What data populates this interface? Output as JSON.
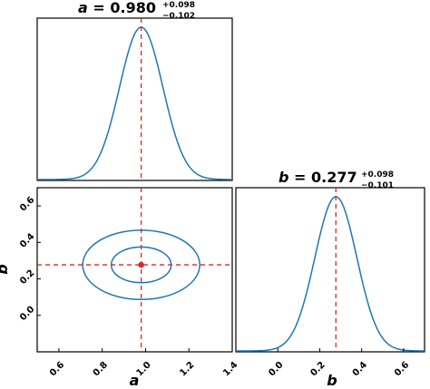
{
  "figure": {
    "top_left": {
      "title": {
        "param": "a",
        "center": "0.980",
        "plus": "+0.098",
        "minus": "−0.102"
      }
    },
    "bottom_right": {
      "title": {
        "param": "b",
        "center": "0.277",
        "plus": "+0.098",
        "minus": "−0.101"
      }
    }
  },
  "chart_data": [
    {
      "type": "line",
      "panel": "marginal-a",
      "title": "a = 0.980 +0.098 −0.102",
      "xlim": [
        0.5,
        1.4
      ],
      "ylim": [
        0,
        1.0
      ],
      "x_variable": "a",
      "peak_x": 0.98,
      "sigma": 0.1,
      "series": [
        {
          "values_shape": "gaussian",
          "color": "#1f77b4"
        }
      ],
      "marker": {
        "x": 0.98,
        "color": "#d62728",
        "style": "dashed"
      },
      "ticks_visible": false
    },
    {
      "type": "line",
      "panel": "joint-a-b",
      "xlim": [
        0.5,
        1.4
      ],
      "ylim": [
        -0.2,
        0.7
      ],
      "xlabel": "a",
      "ylabel": "b",
      "xticks": [
        0.6,
        0.8,
        1.0,
        1.2,
        1.4
      ],
      "yticks": [
        0.0,
        0.2,
        0.4,
        0.6
      ],
      "point": {
        "x": 0.98,
        "y": 0.277,
        "color": "#d62728"
      },
      "contours": [
        {
          "name": "1-sigma",
          "cx": 0.98,
          "cy": 0.277,
          "rx": 0.138,
          "ry": 0.098
        },
        {
          "name": "2-sigma",
          "cx": 0.98,
          "cy": 0.277,
          "rx": 0.27,
          "ry": 0.19
        }
      ],
      "guides": {
        "vertical_x": 0.98,
        "horizontal_y": 0.277,
        "style": "dashed",
        "color": "#d62728"
      }
    },
    {
      "type": "line",
      "panel": "marginal-b",
      "title": "b = 0.277 +0.098 −0.101",
      "xlim": [
        -0.2,
        0.7
      ],
      "ylim": [
        0,
        1.0
      ],
      "xlabel": "b",
      "x_variable": "b",
      "xticks": [
        0.0,
        0.2,
        0.4,
        0.6
      ],
      "peak_x": 0.277,
      "sigma": 0.1,
      "series": [
        {
          "values_shape": "gaussian",
          "color": "#1f77b4"
        }
      ],
      "marker": {
        "x": 0.277,
        "color": "#d62728",
        "style": "dashed"
      }
    }
  ],
  "labels": {
    "joint_xlabel": "a",
    "joint_ylabel": "b",
    "marginal_b_xlabel": "b",
    "joint_xticks": [
      "0.6",
      "0.8",
      "1.0",
      "1.2",
      "1.4"
    ],
    "joint_yticks": [
      "0.0",
      "0.2",
      "0.4",
      "0.6"
    ],
    "marg_b_xticks": [
      "0.0",
      "0.2",
      "0.4",
      "0.6"
    ]
  },
  "colors": {
    "series": "#1f77b4",
    "marker": "#d62728"
  }
}
